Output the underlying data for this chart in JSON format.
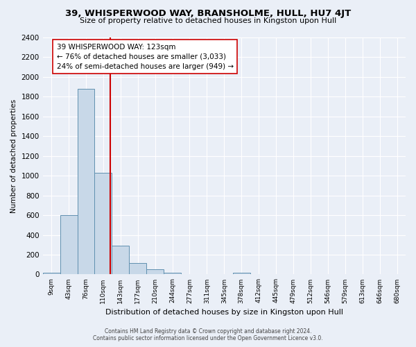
{
  "title": "39, WHISPERWOOD WAY, BRANSHOLME, HULL, HU7 4JT",
  "subtitle": "Size of property relative to detached houses in Kingston upon Hull",
  "xlabel": "Distribution of detached houses by size in Kingston upon Hull",
  "ylabel": "Number of detached properties",
  "footer_line1": "Contains HM Land Registry data © Crown copyright and database right 2024.",
  "footer_line2": "Contains public sector information licensed under the Open Government Licence v3.0.",
  "bin_labels": [
    "9sqm",
    "43sqm",
    "76sqm",
    "110sqm",
    "143sqm",
    "177sqm",
    "210sqm",
    "244sqm",
    "277sqm",
    "311sqm",
    "345sqm",
    "378sqm",
    "412sqm",
    "445sqm",
    "479sqm",
    "512sqm",
    "546sqm",
    "579sqm",
    "613sqm",
    "646sqm",
    "680sqm"
  ],
  "bar_heights": [
    15,
    600,
    1880,
    1030,
    290,
    115,
    50,
    18,
    0,
    0,
    0,
    18,
    0,
    0,
    0,
    0,
    0,
    0,
    0,
    0,
    0
  ],
  "bar_color": "#c8d8e8",
  "bar_edge_color": "#6090b0",
  "vline_color": "#cc0000",
  "annotation_text": "39 WHISPERWOOD WAY: 123sqm\n← 76% of detached houses are smaller (3,033)\n24% of semi-detached houses are larger (949) →",
  "annotation_box_color": "#ffffff",
  "annotation_box_edge": "#cc0000",
  "ylim": [
    0,
    2400
  ],
  "yticks": [
    0,
    200,
    400,
    600,
    800,
    1000,
    1200,
    1400,
    1600,
    1800,
    2000,
    2200,
    2400
  ],
  "background_color": "#eaeff7",
  "plot_bg_color": "#eaeff7",
  "vline_pos": 3.39
}
